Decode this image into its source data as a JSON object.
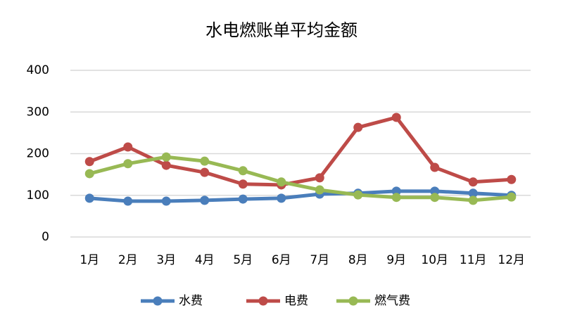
{
  "chart_data": {
    "type": "line",
    "title": "水电燃账单平均金额",
    "categories": [
      "1月",
      "2月",
      "3月",
      "4月",
      "5月",
      "6月",
      "7月",
      "8月",
      "9月",
      "10月",
      "11月",
      "12月"
    ],
    "series": [
      {
        "name": "水费",
        "color": "#4a7ebb",
        "values": [
          93,
          86,
          86,
          88,
          91,
          93,
          103,
          105,
          110,
          110,
          105,
          100
        ]
      },
      {
        "name": "电费",
        "color": "#be4b48",
        "values": [
          181,
          216,
          172,
          155,
          127,
          125,
          142,
          263,
          287,
          167,
          132,
          138
        ]
      },
      {
        "name": "燃气费",
        "color": "#98b954",
        "values": [
          152,
          176,
          192,
          182,
          159,
          132,
          113,
          101,
          95,
          95,
          88,
          96
        ]
      }
    ],
    "ylim": [
      0,
      400
    ],
    "yticks": [
      0,
      100,
      200,
      300,
      400
    ],
    "grid": true,
    "legend": "bottom"
  }
}
